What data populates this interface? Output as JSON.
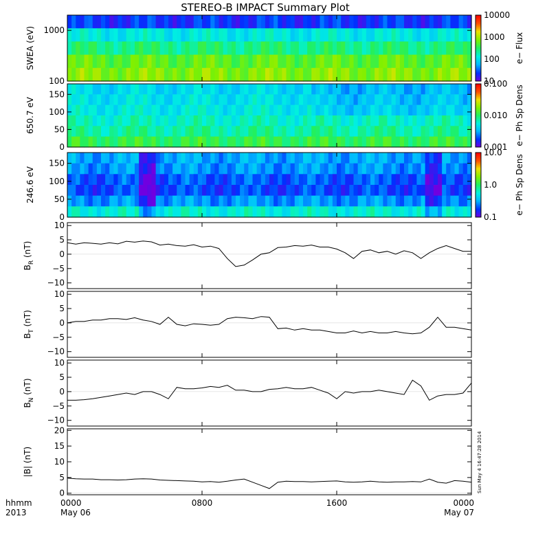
{
  "title": "STEREO-B IMPACT Summary Plot",
  "time_axis": {
    "corner_labels": [
      "hhmm",
      "2013"
    ],
    "ticks": [
      {
        "hours": 0,
        "line1": "0000",
        "line2": "May 06"
      },
      {
        "hours": 8,
        "line1": "0800",
        "line2": ""
      },
      {
        "hours": 16,
        "line1": "1600",
        "line2": ""
      },
      {
        "hours": 24,
        "line1": "0000",
        "line2": "May 07"
      }
    ],
    "range_hours": [
      0,
      24
    ]
  },
  "timestamp": "Sun May  4 16:47:28 2014",
  "colors": {
    "line": "#000000",
    "colormap": [
      "#7000e0",
      "#0030ff",
      "#00b8ff",
      "#00f0e0",
      "#20f060",
      "#80f000",
      "#f0e000",
      "#ff5000",
      "#ff0000"
    ]
  },
  "chart_data": [
    {
      "type": "heatmap",
      "ylabel": "SWEA (eV)",
      "yscale": "log",
      "ylim": [
        100,
        2000
      ],
      "y_ticks": [
        "1000",
        "100"
      ],
      "y_tick_values": [
        1000,
        100
      ],
      "colorbar": {
        "label": "e− Flux",
        "scale": "log",
        "range": [
          10,
          10000
        ],
        "ticks": [
          "10000",
          "1000",
          "100",
          "10"
        ],
        "tick_values": [
          10000,
          1000,
          100,
          10
        ]
      },
      "description_rows_eV": [
        150,
        300,
        600,
        1000,
        1600
      ],
      "row_levels": [
        0.63,
        0.58,
        0.47,
        0.36,
        0.12
      ]
    },
    {
      "type": "heatmap",
      "ylabel": "650.7 eV",
      "ylim": [
        0,
        180
      ],
      "y_ticks": [
        "150",
        "100",
        "50",
        "0"
      ],
      "y_tick_values": [
        150,
        100,
        50,
        0
      ],
      "colorbar": {
        "label": "e− Ph Sp Dens",
        "scale": "log",
        "range": [
          0.001,
          0.1
        ],
        "ticks": [
          "0.100",
          "0.010",
          "0.001"
        ],
        "tick_values": [
          0.1,
          0.01,
          0.001
        ]
      },
      "row_levels": [
        0.52,
        0.44,
        0.4,
        0.36,
        0.34,
        0.32
      ]
    },
    {
      "type": "heatmap",
      "ylabel": "246.6 eV",
      "ylim": [
        0,
        180
      ],
      "y_ticks": [
        "150",
        "100",
        "50",
        "0"
      ],
      "y_tick_values": [
        150,
        100,
        50,
        0
      ],
      "colorbar": {
        "label": "e− Ph Sp Dens",
        "scale": "log",
        "range": [
          0.1,
          10
        ],
        "ticks": [
          "10.0",
          "1.0",
          "0.1"
        ],
        "tick_values": [
          10,
          1,
          0.1
        ]
      },
      "row_levels": [
        0.38,
        0.22,
        0.14,
        0.16,
        0.22,
        0.24
      ]
    },
    {
      "type": "line",
      "ylabel_main": "B",
      "ylabel_sub": "R",
      "ylabel_unit": " (nT)",
      "ylim": [
        -12,
        11
      ],
      "y_ticks": [
        "10",
        "5",
        "0",
        "−5",
        "−10"
      ],
      "y_tick_values": [
        10,
        5,
        0,
        -5,
        -10
      ],
      "x": [
        0,
        0.5,
        1,
        1.5,
        2,
        2.5,
        3,
        3.5,
        4,
        4.5,
        5,
        5.5,
        6,
        6.5,
        7,
        7.5,
        8,
        8.5,
        9,
        9.5,
        10,
        10.5,
        11,
        11.5,
        12,
        12.5,
        13,
        13.5,
        14,
        14.5,
        15,
        15.5,
        16,
        16.5,
        17,
        17.5,
        18,
        18.5,
        19,
        19.5,
        20,
        20.5,
        21,
        21.5,
        22,
        22.5,
        23,
        23.5,
        24
      ],
      "y": [
        4,
        3.5,
        4,
        3.8,
        3.5,
        4,
        3.6,
        4.5,
        4.2,
        4.6,
        4.3,
        3.2,
        3.5,
        3,
        2.8,
        3.3,
        2.5,
        2.8,
        2,
        -1.5,
        -4.3,
        -3.8,
        -2,
        0,
        0.5,
        2.3,
        2.5,
        3,
        2.8,
        3.2,
        2.5,
        2.5,
        1.8,
        0.5,
        -1.5,
        1,
        1.5,
        0.5,
        1,
        0,
        1.2,
        0.5,
        -1.5,
        0.5,
        2,
        3,
        2,
        1,
        1
      ]
    },
    {
      "type": "line",
      "ylabel_main": "B",
      "ylabel_sub": "T",
      "ylabel_unit": " (nT)",
      "ylim": [
        -12,
        11
      ],
      "y_ticks": [
        "10",
        "5",
        "0",
        "−5",
        "−10"
      ],
      "y_tick_values": [
        10,
        5,
        0,
        -5,
        -10
      ],
      "x": [
        0,
        0.5,
        1,
        1.5,
        2,
        2.5,
        3,
        3.5,
        4,
        4.5,
        5,
        5.5,
        6,
        6.5,
        7,
        7.5,
        8,
        8.5,
        9,
        9.5,
        10,
        10.5,
        11,
        11.5,
        12,
        12.5,
        13,
        13.5,
        14,
        14.5,
        15,
        15.5,
        16,
        16.5,
        17,
        17.5,
        18,
        18.5,
        19,
        19.5,
        20,
        20.5,
        21,
        21.5,
        22,
        22.5,
        23,
        23.5,
        24
      ],
      "y": [
        0,
        0.5,
        0.5,
        1,
        1,
        1.5,
        1.5,
        1.2,
        1.8,
        1,
        0.5,
        -0.5,
        2,
        -0.5,
        -1,
        -0.3,
        -0.5,
        -0.8,
        -0.5,
        1.5,
        2,
        1.8,
        1.5,
        2.2,
        2,
        -2,
        -1.8,
        -2.5,
        -2,
        -2.5,
        -2.5,
        -3,
        -3.5,
        -3.5,
        -2.8,
        -3.5,
        -3,
        -3.5,
        -3.5,
        -3,
        -3.5,
        -3.8,
        -3.5,
        -1.5,
        2,
        -1.5,
        -1.5,
        -2,
        -2.5
      ]
    },
    {
      "type": "line",
      "ylabel_main": "B",
      "ylabel_sub": "N",
      "ylabel_unit": " (nT)",
      "ylim": [
        -12,
        11
      ],
      "y_ticks": [
        "10",
        "5",
        "0",
        "−5",
        "−10"
      ],
      "y_tick_values": [
        10,
        5,
        0,
        -5,
        -10
      ],
      "x": [
        0,
        0.5,
        1,
        1.5,
        2,
        2.5,
        3,
        3.5,
        4,
        4.5,
        5,
        5.5,
        6,
        6.5,
        7,
        7.5,
        8,
        8.5,
        9,
        9.5,
        10,
        10.5,
        11,
        11.5,
        12,
        12.5,
        13,
        13.5,
        14,
        14.5,
        15,
        15.5,
        16,
        16.5,
        17,
        17.5,
        18,
        18.5,
        19,
        19.5,
        20,
        20.5,
        21,
        21.5,
        22,
        22.5,
        23,
        23.5,
        24
      ],
      "y": [
        -3,
        -3,
        -2.8,
        -2.5,
        -2,
        -1.5,
        -1,
        -0.5,
        -1,
        0,
        0,
        -1,
        -2.5,
        1.5,
        1,
        1,
        1.3,
        1.8,
        1.5,
        2.2,
        0.5,
        0.5,
        0,
        0,
        0.8,
        1,
        1.5,
        1,
        1,
        1.5,
        0.5,
        -0.5,
        -2.5,
        0,
        -0.5,
        0,
        0,
        0.5,
        0,
        -0.5,
        -1,
        4,
        2,
        -3,
        -1.5,
        -1,
        -1,
        -0.5,
        3
      ]
    },
    {
      "type": "line",
      "ylabel_main": "|B|",
      "ylabel_sub": "",
      "ylabel_unit": " (nT)",
      "ylim": [
        -0.5,
        20.5
      ],
      "y_ticks": [
        "20",
        "15",
        "10",
        "5",
        "0"
      ],
      "y_tick_values": [
        20,
        15,
        10,
        5,
        0
      ],
      "x": [
        0,
        0.5,
        1,
        1.5,
        2,
        2.5,
        3,
        3.5,
        4,
        4.5,
        5,
        5.5,
        6,
        6.5,
        7,
        7.5,
        8,
        8.5,
        9,
        9.5,
        10,
        10.5,
        11,
        11.5,
        12,
        12.5,
        13,
        13.5,
        14,
        14.5,
        15,
        15.5,
        16,
        16.5,
        17,
        17.5,
        18,
        18.5,
        19,
        19.5,
        20,
        20.5,
        21,
        21.5,
        22,
        22.5,
        23,
        23.5,
        24
      ],
      "y": [
        4.8,
        4.6,
        4.5,
        4.5,
        4.3,
        4.3,
        4.2,
        4.3,
        4.5,
        4.6,
        4.5,
        4.2,
        4.1,
        4,
        3.9,
        3.8,
        3.6,
        3.7,
        3.5,
        3.8,
        4.2,
        4.5,
        3.5,
        2.5,
        1.5,
        3.5,
        3.8,
        3.7,
        3.7,
        3.6,
        3.7,
        3.8,
        3.9,
        3.6,
        3.5,
        3.6,
        3.8,
        3.6,
        3.5,
        3.6,
        3.6,
        3.7,
        3.6,
        4.5,
        3.5,
        3.2,
        4,
        3.8,
        3.5
      ]
    }
  ]
}
